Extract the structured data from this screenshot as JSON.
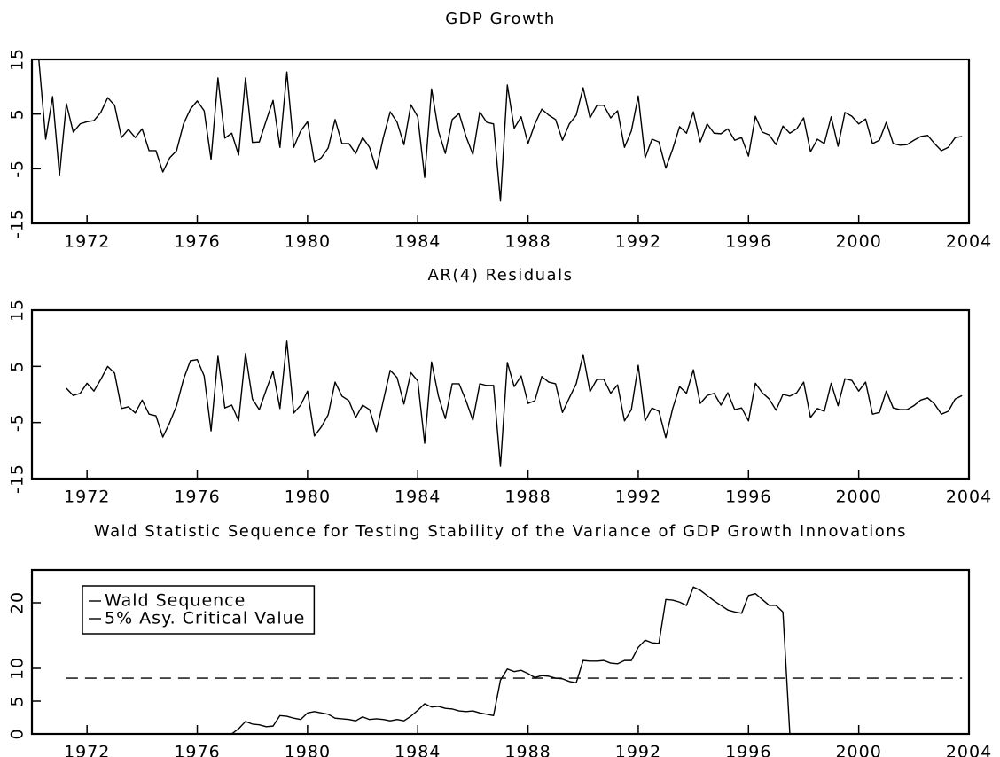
{
  "chart_data": [
    {
      "type": "line",
      "title": "GDP Growth",
      "x": [
        1970.25,
        1970.5,
        1970.75,
        1971,
        1971.25,
        1971.5,
        1971.75,
        1972,
        1972.25,
        1972.5,
        1972.75,
        1973,
        1973.25,
        1973.5,
        1973.75,
        1974,
        1974.25,
        1974.5,
        1974.75,
        1975,
        1975.25,
        1975.5,
        1975.75,
        1976,
        1976.25,
        1976.5,
        1976.75,
        1977,
        1977.25,
        1977.5,
        1977.75,
        1978,
        1978.25,
        1978.5,
        1978.75,
        1979,
        1979.25,
        1979.5,
        1979.75,
        1980,
        1980.25,
        1980.5,
        1980.75,
        1981,
        1981.25,
        1981.5,
        1981.75,
        1982,
        1982.25,
        1982.5,
        1982.75,
        1983,
        1983.25,
        1983.5,
        1983.75,
        1984,
        1984.25,
        1984.5,
        1984.75,
        1985,
        1985.25,
        1985.5,
        1985.75,
        1986,
        1986.25,
        1986.5,
        1986.75,
        1987,
        1987.25,
        1987.5,
        1987.75,
        1988,
        1988.25,
        1988.5,
        1988.75,
        1989,
        1989.25,
        1989.5,
        1989.75,
        1990,
        1990.25,
        1990.5,
        1990.75,
        1991,
        1991.25,
        1991.5,
        1991.75,
        1992,
        1992.25,
        1992.5,
        1992.75,
        1993,
        1993.25,
        1993.5,
        1993.75,
        1994,
        1994.25,
        1994.5,
        1994.75,
        1995,
        1995.25,
        1995.5,
        1995.75,
        1996,
        1996.25,
        1996.5,
        1996.75,
        1997,
        1997.25,
        1997.5,
        1997.75,
        1998,
        1998.25,
        1998.5,
        1998.75,
        1999,
        1999.25,
        1999.5,
        1999.75,
        2000,
        2000.25,
        2000.5,
        2000.75,
        2001,
        2001.25,
        2001.5,
        2001.75,
        2002,
        2002.25,
        2002.5,
        2002.75,
        2003,
        2003.25,
        2003.5,
        2003.75
      ],
      "series": [
        {
          "color": "#000000",
          "values": [
            15,
            0.4,
            8.2,
            -6.2,
            6.9,
            1.7,
            3.2,
            3.6,
            3.8,
            5.3,
            8.0,
            6.6,
            0.7,
            2.2,
            0.7,
            2.3,
            -1.7,
            -1.7,
            -5.6,
            -3,
            -1.7,
            3.2,
            5.9,
            7.4,
            5.6,
            -3.3,
            11.6,
            0.6,
            1.5,
            -2.5,
            11.6,
            -0.2,
            -0.1,
            3.8,
            7.5,
            -1.1,
            12.7,
            -1.1,
            1.9,
            3.6,
            -3.8,
            -3,
            -1.2,
            4,
            -0.4,
            -0.4,
            -2.2,
            0.7,
            -1.1,
            -5.1,
            0.7,
            5.4,
            3.5,
            -0.6,
            6.7,
            4.5,
            -6.6,
            9.6,
            1.9,
            -2.2,
            4,
            5.1,
            0.9,
            -2.4,
            5.4,
            3.5,
            3.2,
            -10.9,
            10.3,
            2.4,
            4.5,
            -0.4,
            3.2,
            5.9,
            4.8,
            4,
            0.2,
            3.2,
            4.8,
            9.8,
            4.3,
            6.6,
            6.6,
            4.3,
            5.6,
            -1.1,
            1.9,
            8.3,
            -3,
            0.4,
            -0.1,
            -4.9,
            -1.4,
            2.7,
            1.5,
            5.4,
            -0.1,
            3.2,
            1.5,
            1.4,
            2.3,
            0.2,
            0.7,
            -2.7,
            4.6,
            1.7,
            1.2,
            -0.6,
            2.8,
            1.5,
            2.3,
            4.3,
            -1.9,
            0.4,
            -0.4,
            4.5,
            -0.9,
            5.3,
            4.6,
            3.2,
            4.1,
            -0.4,
            0.2,
            3.5,
            -0.4,
            -0.7,
            -0.6,
            0.2,
            0.9,
            1.1,
            -0.4,
            -1.7,
            -1.1,
            0.7,
            0.9
          ]
        }
      ],
      "xlim": [
        1970,
        2004
      ],
      "xticks": [
        1972,
        1976,
        1980,
        1984,
        1988,
        1992,
        1996,
        2000,
        2004
      ],
      "ylim": [
        -15,
        15
      ],
      "yticks": [
        -15,
        -5,
        5,
        15
      ]
    },
    {
      "type": "line",
      "title": "AR(4) Residuals",
      "x": [
        1970.25,
        1970.5,
        1970.75,
        1971,
        1971.25,
        1971.5,
        1971.75,
        1972,
        1972.25,
        1972.5,
        1972.75,
        1973,
        1973.25,
        1973.5,
        1973.75,
        1974,
        1974.25,
        1974.5,
        1974.75,
        1975,
        1975.25,
        1975.5,
        1975.75,
        1976,
        1976.25,
        1976.5,
        1976.75,
        1977,
        1977.25,
        1977.5,
        1977.75,
        1978,
        1978.25,
        1978.5,
        1978.75,
        1979,
        1979.25,
        1979.5,
        1979.75,
        1980,
        1980.25,
        1980.5,
        1980.75,
        1981,
        1981.25,
        1981.5,
        1981.75,
        1982,
        1982.25,
        1982.5,
        1982.75,
        1983,
        1983.25,
        1983.5,
        1983.75,
        1984,
        1984.25,
        1984.5,
        1984.75,
        1985,
        1985.25,
        1985.5,
        1985.75,
        1986,
        1986.25,
        1986.5,
        1986.75,
        1987,
        1987.25,
        1987.5,
        1987.75,
        1988,
        1988.25,
        1988.5,
        1988.75,
        1989,
        1989.25,
        1989.5,
        1989.75,
        1990,
        1990.25,
        1990.5,
        1990.75,
        1991,
        1991.25,
        1991.5,
        1991.75,
        1992,
        1992.25,
        1992.5,
        1992.75,
        1993,
        1993.25,
        1993.5,
        1993.75,
        1994,
        1994.25,
        1994.5,
        1994.75,
        1995,
        1995.25,
        1995.5,
        1995.75,
        1996,
        1996.25,
        1996.5,
        1996.75,
        1997,
        1997.25,
        1997.5,
        1997.75,
        1998,
        1998.25,
        1998.5,
        1998.75,
        1999,
        1999.25,
        1999.5,
        1999.75,
        2000,
        2000.25,
        2000.5,
        2000.75,
        2001,
        2001.25,
        2001.5,
        2001.75,
        2002,
        2002.25,
        2002.5,
        2002.75,
        2003,
        2003.25,
        2003.5,
        2003.75
      ],
      "series": [
        {
          "color": "#000000",
          "values": [
            null,
            null,
            null,
            null,
            1.1,
            -0.2,
            0.2,
            2,
            0.6,
            2.7,
            5,
            3.8,
            -2.5,
            -2.2,
            -3.3,
            -1,
            -3.5,
            -3.8,
            -7.6,
            -5,
            -2,
            2.7,
            6,
            6.2,
            3.3,
            -6.5,
            6.8,
            -2.4,
            -1.9,
            -4.7,
            7.3,
            -0.8,
            -2.7,
            0.8,
            4.1,
            -2.5,
            9.5,
            -3.3,
            -1.9,
            0.6,
            -7.4,
            -5.8,
            -3.6,
            2.2,
            -0.3,
            -1.1,
            -4.1,
            -1.9,
            -2.7,
            -6.6,
            -1.1,
            4.3,
            3,
            -1.7,
            3.9,
            2.4,
            -8.7,
            5.8,
            -0.3,
            -4.3,
            1.9,
            1.9,
            -1.1,
            -4.6,
            1.9,
            1.6,
            1.6,
            -12.8,
            5.7,
            1.4,
            3.3,
            -1.6,
            -1.1,
            3.2,
            2.2,
            1.9,
            -3.2,
            -0.6,
            1.9,
            7.1,
            0.5,
            2.7,
            2.7,
            0.2,
            1.7,
            -4.7,
            -2.7,
            5.2,
            -4.7,
            -2.4,
            -3,
            -7.7,
            -2.5,
            1.4,
            0.2,
            4.4,
            -1.6,
            -0.2,
            0.2,
            -1.9,
            0.3,
            -2.7,
            -2.4,
            -4.7,
            2,
            0.3,
            -0.8,
            -2.8,
            0,
            -0.3,
            0.3,
            2.2,
            -4.1,
            -2.5,
            -3,
            2,
            -2,
            2.8,
            2.5,
            0.6,
            2.2,
            -3.5,
            -3.2,
            0.6,
            -2.4,
            -2.7,
            -2.7,
            -2,
            -1,
            -0.6,
            -1.7,
            -3.5,
            -3,
            -0.8,
            -0.2
          ]
        }
      ],
      "xlim": [
        1970,
        2004
      ],
      "xticks": [
        1972,
        1976,
        1980,
        1984,
        1988,
        1992,
        1996,
        2000,
        2004
      ],
      "ylim": [
        -15,
        15
      ],
      "yticks": [
        -15,
        -5,
        5,
        15
      ]
    },
    {
      "type": "line",
      "title": "Wald Statistic Sequence for Testing Stability of the Variance of GDP Growth Innovations",
      "x": [
        1970.25,
        1970.5,
        1970.75,
        1971,
        1971.25,
        1971.5,
        1971.75,
        1972,
        1972.25,
        1972.5,
        1972.75,
        1973,
        1973.25,
        1973.5,
        1973.75,
        1974,
        1974.25,
        1974.5,
        1974.75,
        1975,
        1975.25,
        1975.5,
        1975.75,
        1976,
        1976.25,
        1976.5,
        1976.75,
        1977,
        1977.25,
        1977.5,
        1977.75,
        1978,
        1978.25,
        1978.5,
        1978.75,
        1979,
        1979.25,
        1979.5,
        1979.75,
        1980,
        1980.25,
        1980.5,
        1980.75,
        1981,
        1981.25,
        1981.5,
        1981.75,
        1982,
        1982.25,
        1982.5,
        1982.75,
        1983,
        1983.25,
        1983.5,
        1983.75,
        1984,
        1984.25,
        1984.5,
        1984.75,
        1985,
        1985.25,
        1985.5,
        1985.75,
        1986,
        1986.25,
        1986.5,
        1986.75,
        1987,
        1987.25,
        1987.5,
        1987.75,
        1988,
        1988.25,
        1988.5,
        1988.75,
        1989,
        1989.25,
        1989.5,
        1989.75,
        1990,
        1990.25,
        1990.5,
        1990.75,
        1991,
        1991.25,
        1991.5,
        1991.75,
        1992,
        1992.25,
        1992.5,
        1992.75,
        1993,
        1993.25,
        1993.5,
        1993.75,
        1994,
        1994.25,
        1994.5,
        1994.75,
        1995,
        1995.25,
        1995.5,
        1995.75,
        1996,
        1996.25,
        1996.5,
        1996.75,
        1997,
        1997.25,
        1997.5,
        1997.75,
        1998,
        1998.25,
        1998.5,
        1998.75,
        1999,
        1999.25,
        1999.5,
        1999.75,
        2000,
        2000.25,
        2000.5,
        2000.75,
        2001,
        2001.25,
        2001.5,
        2001.75,
        2002,
        2002.25,
        2002.5,
        2002.75,
        2003,
        2003.25,
        2003.5,
        2003.75
      ],
      "series": [
        {
          "name": "Wald Sequence",
          "color": "#000000",
          "values": [
            null,
            null,
            null,
            null,
            0,
            0,
            0,
            0,
            0,
            0,
            0,
            0,
            0,
            0,
            0,
            0,
            0,
            0,
            0,
            0,
            0,
            0,
            0,
            0,
            0,
            0,
            0,
            0,
            0,
            0.8,
            1.9,
            1.5,
            1.4,
            1.1,
            1.2,
            2.8,
            2.7,
            2.4,
            2.2,
            3.2,
            3.4,
            3.2,
            3,
            2.4,
            2.3,
            2.2,
            2,
            2.6,
            2.2,
            2.3,
            2.2,
            2,
            2.2,
            2,
            2.7,
            3.6,
            4.6,
            4.1,
            4.2,
            3.9,
            3.8,
            3.5,
            3.4,
            3.5,
            3.2,
            3,
            2.8,
            8.2,
            9.9,
            9.5,
            9.7,
            9.2,
            8.6,
            8.9,
            8.8,
            8.5,
            8.4,
            8,
            7.8,
            11.2,
            11.1,
            11.1,
            11.2,
            10.8,
            10.7,
            11.2,
            11.2,
            13.2,
            14.3,
            13.9,
            13.8,
            20.5,
            20.4,
            20.1,
            19.6,
            22.4,
            21.9,
            21.1,
            20.3,
            19.6,
            18.9,
            18.6,
            18.4,
            21.1,
            21.4,
            20.5,
            19.6,
            19.6,
            18.6,
            0,
            null,
            null,
            null,
            null,
            null,
            null,
            null,
            null,
            null,
            null,
            null,
            null,
            null,
            null,
            null,
            null,
            null,
            null,
            null,
            null,
            null,
            null,
            null,
            null,
            null
          ]
        }
      ],
      "reference_lines": [
        {
          "name": "5% Asy. Critical Value",
          "value": 8.5,
          "style": "dashed",
          "color": "#000000"
        }
      ],
      "legend": "upper left",
      "xlim": [
        1970,
        2004
      ],
      "xticks": [
        1972,
        1976,
        1980,
        1984,
        1988,
        1992,
        1996,
        2000,
        2004
      ],
      "ylim": [
        0,
        25
      ],
      "yticks": [
        0,
        5,
        10,
        20
      ]
    }
  ]
}
